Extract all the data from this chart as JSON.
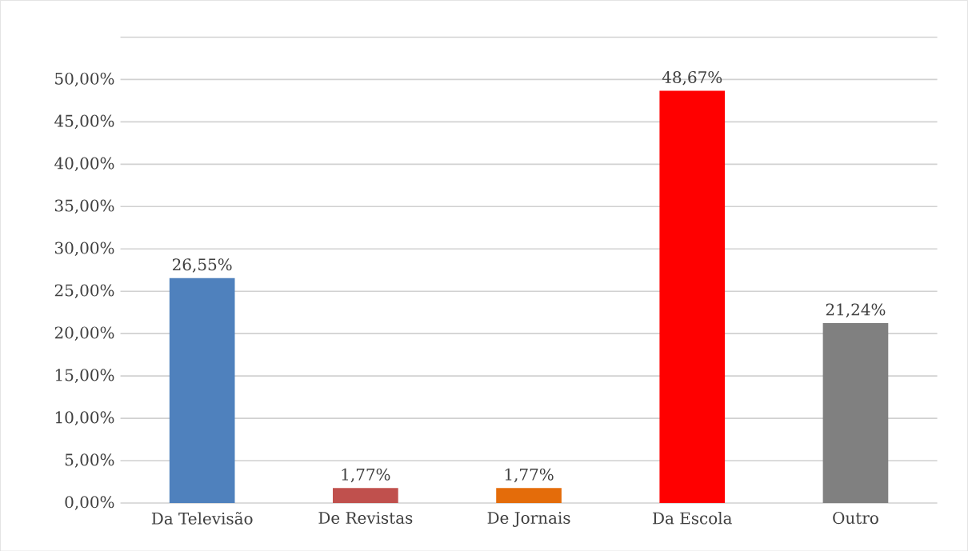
{
  "chart_data": {
    "type": "bar",
    "categories": [
      "Da Televisão",
      "De Revistas",
      "De Jornais",
      "Da Escola",
      "Outro"
    ],
    "values": [
      26.55,
      1.77,
      1.77,
      48.67,
      21.24
    ],
    "colors": [
      "#4f81bd",
      "#c0504d",
      "#e46c0a",
      "#ff0000",
      "#808080"
    ],
    "value_labels": [
      "26,55%",
      "1,77%",
      "1,77%",
      "48,67%",
      "21,24%"
    ],
    "ylim": [
      0,
      55
    ],
    "yticks": [
      {
        "value": 0,
        "label": "0,00%"
      },
      {
        "value": 5,
        "label": "5,00%"
      },
      {
        "value": 10,
        "label": "10,00%"
      },
      {
        "value": 15,
        "label": "15,00%"
      },
      {
        "value": 20,
        "label": "20,00%"
      },
      {
        "value": 25,
        "label": "25,00%"
      },
      {
        "value": 30,
        "label": "30,00%"
      },
      {
        "value": 35,
        "label": "35,00%"
      },
      {
        "value": 40,
        "label": "40,00%"
      },
      {
        "value": 45,
        "label": "45,00%"
      },
      {
        "value": 50,
        "label": "50,00%"
      },
      {
        "value": 55,
        "label": null
      }
    ],
    "grid": "y"
  }
}
